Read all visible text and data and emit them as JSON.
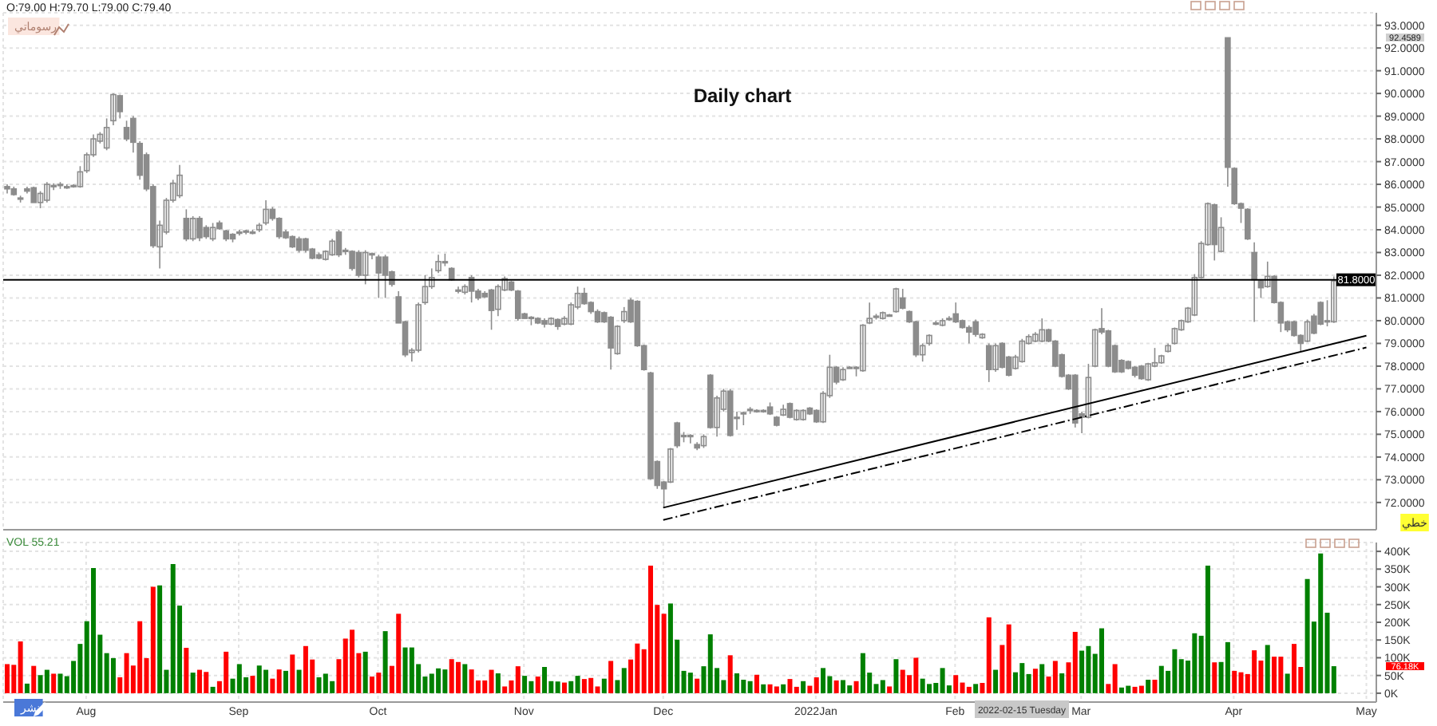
{
  "chart_data": [
    {
      "type": "candlestick",
      "title": "Daily chart",
      "categories": [
        null,
        null,
        null,
        null,
        null,
        null,
        null,
        null,
        null,
        null,
        null,
        null,
        "Aug",
        null,
        null,
        null,
        null,
        null,
        null,
        null,
        null,
        null,
        null,
        null,
        null,
        null,
        null,
        null,
        null,
        null,
        null,
        null,
        null,
        null,
        null,
        "Sep",
        null,
        null,
        null,
        null,
        null,
        null,
        null,
        null,
        null,
        null,
        null,
        null,
        null,
        null,
        null,
        null,
        null,
        null,
        null,
        null,
        "Oct",
        null,
        null,
        null,
        null,
        null,
        null,
        null,
        null,
        null,
        null,
        null,
        null,
        null,
        null,
        null,
        null,
        null,
        null,
        null,
        null,
        null,
        "Nov",
        null,
        null,
        null,
        null,
        null,
        null,
        null,
        null,
        null,
        null,
        null,
        null,
        null,
        null,
        null,
        null,
        null,
        null,
        null,
        null,
        "Dec",
        null,
        null,
        null,
        null,
        null,
        null,
        null,
        null,
        null,
        null,
        null,
        null,
        null,
        null,
        null,
        null,
        null,
        null,
        null,
        null,
        null,
        null,
        "2022Jan",
        null,
        null,
        null,
        null,
        null,
        null,
        null,
        null,
        null,
        null,
        null,
        null,
        null,
        null,
        null,
        null,
        null,
        null,
        null,
        null,
        "Feb",
        null,
        null,
        null,
        null,
        null,
        null,
        null,
        null,
        null,
        null,
        null,
        null,
        null,
        null,
        null,
        null,
        null,
        null,
        "Mar",
        null,
        null,
        null,
        null,
        null,
        null,
        null,
        null,
        null,
        null,
        null,
        null,
        null,
        null,
        null,
        null,
        null,
        null,
        null,
        null,
        null,
        null,
        "Apr",
        null,
        null,
        null,
        null,
        null,
        null,
        null,
        null,
        null,
        null,
        null,
        null,
        null,
        null,
        null,
        null,
        null,
        null,
        null,
        "May",
        null
      ],
      "ohlc": [
        [
          85.9,
          86.0,
          85.6,
          85.8
        ],
        [
          85.8,
          85.9,
          85.5,
          85.55
        ],
        [
          85.4,
          85.5,
          85.2,
          85.4
        ],
        [
          85.8,
          85.9,
          85.6,
          85.7
        ],
        [
          85.85,
          85.9,
          85.2,
          85.2
        ],
        [
          85.2,
          85.7,
          84.95,
          85.6
        ],
        [
          85.3,
          86.1,
          85.2,
          86.0
        ],
        [
          85.9,
          86.05,
          85.75,
          85.95
        ],
        [
          85.95,
          86.1,
          85.8,
          86.0
        ],
        [
          85.9,
          86.0,
          85.8,
          85.9
        ],
        [
          85.9,
          86.0,
          85.85,
          85.95
        ],
        [
          85.9,
          86.8,
          85.85,
          86.55
        ],
        [
          86.6,
          87.4,
          86.5,
          87.3
        ],
        [
          87.3,
          88.2,
          87.2,
          88.0
        ],
        [
          87.9,
          88.3,
          87.8,
          88.2
        ],
        [
          87.6,
          88.9,
          87.5,
          88.5
        ],
        [
          88.8,
          90.0,
          88.6,
          89.95
        ],
        [
          89.9,
          89.95,
          88.9,
          89.2
        ],
        [
          88.5,
          88.8,
          87.9,
          88.0
        ],
        [
          88.9,
          89.0,
          87.4,
          87.85
        ],
        [
          87.8,
          87.9,
          86.2,
          86.4
        ],
        [
          87.3,
          87.4,
          85.7,
          85.8
        ],
        [
          85.9,
          86.0,
          83.2,
          83.3
        ],
        [
          83.25,
          84.4,
          82.3,
          84.2
        ],
        [
          83.9,
          85.4,
          83.8,
          85.3
        ],
        [
          85.3,
          86.2,
          85.2,
          86.05
        ],
        [
          85.5,
          86.85,
          85.4,
          86.4
        ],
        [
          84.5,
          84.9,
          83.5,
          83.6
        ],
        [
          83.6,
          84.6,
          83.5,
          84.5
        ],
        [
          84.5,
          84.6,
          83.5,
          83.65
        ],
        [
          84.1,
          84.2,
          83.6,
          83.7
        ],
        [
          83.6,
          84.3,
          83.5,
          84.1
        ],
        [
          84.3,
          84.4,
          84.0,
          84.05
        ],
        [
          83.95,
          84.0,
          83.5,
          83.6
        ],
        [
          83.8,
          83.85,
          83.45,
          83.6
        ],
        [
          83.85,
          84.0,
          83.75,
          83.9
        ],
        [
          83.9,
          84.0,
          83.8,
          83.95
        ],
        [
          83.9,
          84.0,
          83.8,
          83.9
        ],
        [
          84.0,
          84.3,
          83.9,
          84.2
        ],
        [
          84.3,
          85.3,
          84.2,
          84.9
        ],
        [
          84.9,
          85.0,
          84.4,
          84.5
        ],
        [
          84.5,
          84.55,
          83.6,
          83.7
        ],
        [
          83.9,
          84.0,
          83.6,
          83.65
        ],
        [
          83.7,
          83.75,
          83.2,
          83.25
        ],
        [
          83.6,
          83.7,
          83.0,
          83.1
        ],
        [
          83.6,
          83.65,
          83.0,
          83.1
        ],
        [
          83.15,
          83.2,
          82.7,
          82.75
        ],
        [
          82.9,
          83.0,
          82.7,
          82.75
        ],
        [
          82.7,
          83.1,
          82.65,
          83.05
        ],
        [
          82.9,
          83.6,
          82.85,
          83.5
        ],
        [
          83.9,
          84.0,
          82.8,
          82.9
        ],
        [
          83.1,
          83.2,
          82.9,
          83.05
        ],
        [
          83.05,
          83.1,
          82.2,
          82.3
        ],
        [
          83.0,
          83.1,
          81.9,
          82.0
        ],
        [
          82.0,
          83.1,
          81.6,
          83.0
        ],
        [
          82.95,
          83.0,
          82.7,
          82.9
        ],
        [
          82.8,
          82.9,
          81.0,
          82.1
        ],
        [
          82.8,
          82.9,
          81.0,
          82.0
        ],
        [
          82.15,
          82.2,
          81.5,
          81.6
        ],
        [
          81.05,
          81.3,
          79.9,
          79.9
        ],
        [
          79.95,
          80.0,
          78.4,
          78.5
        ],
        [
          78.6,
          78.8,
          78.2,
          78.7
        ],
        [
          78.7,
          80.8,
          78.6,
          80.7
        ],
        [
          80.8,
          82.0,
          80.7,
          81.5
        ],
        [
          81.5,
          82.3,
          81.4,
          81.9
        ],
        [
          82.2,
          82.9,
          82.1,
          82.6
        ],
        [
          82.55,
          82.95,
          82.4,
          82.6
        ],
        [
          82.3,
          82.35,
          81.75,
          81.8
        ],
        [
          81.3,
          81.5,
          81.2,
          81.35
        ],
        [
          81.25,
          81.6,
          81.15,
          81.5
        ],
        [
          81.9,
          82.0,
          80.8,
          81.3
        ],
        [
          81.3,
          81.4,
          80.9,
          81.0
        ],
        [
          81.2,
          81.3,
          81.0,
          81.05
        ],
        [
          81.35,
          81.4,
          79.6,
          80.45
        ],
        [
          80.5,
          81.6,
          80.2,
          81.5
        ],
        [
          81.35,
          81.95,
          81.3,
          81.85
        ],
        [
          81.7,
          81.75,
          81.3,
          81.35
        ],
        [
          81.3,
          81.35,
          80.0,
          80.1
        ],
        [
          80.3,
          80.35,
          80.1,
          80.1
        ],
        [
          80.15,
          80.2,
          79.8,
          80.1
        ],
        [
          80.1,
          80.15,
          79.85,
          79.9
        ],
        [
          80.0,
          80.1,
          79.7,
          79.85
        ],
        [
          79.85,
          80.15,
          79.8,
          80.1
        ],
        [
          80.05,
          80.1,
          79.6,
          79.75
        ],
        [
          79.85,
          80.2,
          79.8,
          80.1
        ],
        [
          79.85,
          80.8,
          79.8,
          80.7
        ],
        [
          80.6,
          81.5,
          80.5,
          81.2
        ],
        [
          81.2,
          81.45,
          80.7,
          80.75
        ],
        [
          80.8,
          80.85,
          80.3,
          80.4
        ],
        [
          80.4,
          80.5,
          79.9,
          79.95
        ],
        [
          80.35,
          80.4,
          79.9,
          79.95
        ],
        [
          80.15,
          80.2,
          77.85,
          78.8
        ],
        [
          78.55,
          79.8,
          78.5,
          79.75
        ],
        [
          80.0,
          80.6,
          79.9,
          80.4
        ],
        [
          80.9,
          81.0,
          79.9,
          79.95
        ],
        [
          80.85,
          80.9,
          78.85,
          78.9
        ],
        [
          78.9,
          78.95,
          77.8,
          77.85
        ],
        [
          77.7,
          77.75,
          73.0,
          73.05
        ],
        [
          73.8,
          73.85,
          72.6,
          72.75
        ],
        [
          72.9,
          72.95,
          71.75,
          72.6
        ],
        [
          72.9,
          74.4,
          72.85,
          74.35
        ],
        [
          75.5,
          75.55,
          74.4,
          74.5
        ],
        [
          74.9,
          75.1,
          74.65,
          74.95
        ],
        [
          74.9,
          75.0,
          74.6,
          74.95
        ],
        [
          74.55,
          74.65,
          74.3,
          74.4
        ],
        [
          74.5,
          75.0,
          74.4,
          74.9
        ],
        [
          77.6,
          77.65,
          75.25,
          75.3
        ],
        [
          75.3,
          76.7,
          74.9,
          76.6
        ],
        [
          76.1,
          77.0,
          76.0,
          76.9
        ],
        [
          76.9,
          77.0,
          74.9,
          74.95
        ],
        [
          75.75,
          76.0,
          75.2,
          75.75
        ],
        [
          75.9,
          76.0,
          75.4,
          75.95
        ],
        [
          76.05,
          76.2,
          75.9,
          76.1
        ],
        [
          76.0,
          76.1,
          75.95,
          76.05
        ],
        [
          76.0,
          76.1,
          75.95,
          76.05
        ],
        [
          76.2,
          76.4,
          75.85,
          75.9
        ],
        [
          75.75,
          75.8,
          75.35,
          75.4
        ],
        [
          75.85,
          76.3,
          75.8,
          76.1
        ],
        [
          76.35,
          76.4,
          75.7,
          75.75
        ],
        [
          75.65,
          76.1,
          75.6,
          76.05
        ],
        [
          75.65,
          76.1,
          75.6,
          76.05
        ],
        [
          76.15,
          76.2,
          75.85,
          75.9
        ],
        [
          76.05,
          76.1,
          75.5,
          75.55
        ],
        [
          75.55,
          76.9,
          75.5,
          76.8
        ],
        [
          76.7,
          78.5,
          76.6,
          77.95
        ],
        [
          77.95,
          78.0,
          77.2,
          77.3
        ],
        [
          77.4,
          77.95,
          77.35,
          77.85
        ],
        [
          77.95,
          78.0,
          77.9,
          77.95
        ],
        [
          77.95,
          78.0,
          77.55,
          77.9
        ],
        [
          77.8,
          79.85,
          77.75,
          79.8
        ],
        [
          79.9,
          80.8,
          79.85,
          80.1
        ],
        [
          80.15,
          80.3,
          80.05,
          80.2
        ],
        [
          80.1,
          80.4,
          80.05,
          80.35
        ],
        [
          80.25,
          80.3,
          80.2,
          80.25
        ],
        [
          80.4,
          81.45,
          80.35,
          81.4
        ],
        [
          81.0,
          81.4,
          80.5,
          80.55
        ],
        [
          80.4,
          80.45,
          79.9,
          79.95
        ],
        [
          79.95,
          80.0,
          78.4,
          78.5
        ],
        [
          78.5,
          79.0,
          78.2,
          78.9
        ],
        [
          79.0,
          79.4,
          78.9,
          79.35
        ],
        [
          79.9,
          80.0,
          79.8,
          79.9
        ],
        [
          79.8,
          80.1,
          79.75,
          80.0
        ],
        [
          80.05,
          80.2,
          80.0,
          80.1
        ],
        [
          80.3,
          80.8,
          79.9,
          79.95
        ],
        [
          80.0,
          80.05,
          79.65,
          79.7
        ],
        [
          79.7,
          79.8,
          79.0,
          79.5
        ],
        [
          79.95,
          80.05,
          79.3,
          79.4
        ],
        [
          79.25,
          79.45,
          79.2,
          79.4
        ],
        [
          78.9,
          79.0,
          77.3,
          77.85
        ],
        [
          77.85,
          79.0,
          77.75,
          78.9
        ],
        [
          79.0,
          79.05,
          77.9,
          77.95
        ],
        [
          78.4,
          78.45,
          77.55,
          77.6
        ],
        [
          77.9,
          78.5,
          77.85,
          78.4
        ],
        [
          78.2,
          79.2,
          78.15,
          79.1
        ],
        [
          79.0,
          79.4,
          78.95,
          79.3
        ],
        [
          79.1,
          79.5,
          79.05,
          79.4
        ],
        [
          79.1,
          80.1,
          79.05,
          79.6
        ],
        [
          79.6,
          79.65,
          79.05,
          79.1
        ],
        [
          79.1,
          79.15,
          77.95,
          78.0
        ],
        [
          78.5,
          78.55,
          77.5,
          77.55
        ],
        [
          77.6,
          77.65,
          76.95,
          77.0
        ],
        [
          77.6,
          77.65,
          75.3,
          75.5
        ],
        [
          75.9,
          76.0,
          75.05,
          75.75
        ],
        [
          75.75,
          78.1,
          75.7,
          77.5
        ],
        [
          78.0,
          79.65,
          77.95,
          79.6
        ],
        [
          79.65,
          80.55,
          79.4,
          79.5
        ],
        [
          79.55,
          79.6,
          77.95,
          78.0
        ],
        [
          78.9,
          78.95,
          77.7,
          77.75
        ],
        [
          78.25,
          78.3,
          77.7,
          77.75
        ],
        [
          78.2,
          78.25,
          77.85,
          77.9
        ],
        [
          77.95,
          78.0,
          77.5,
          77.6
        ],
        [
          78.0,
          78.05,
          77.4,
          77.45
        ],
        [
          77.4,
          78.15,
          77.35,
          78.1
        ],
        [
          78.0,
          78.8,
          77.95,
          78.15
        ],
        [
          78.15,
          78.5,
          78.1,
          78.45
        ],
        [
          78.65,
          79.0,
          78.6,
          78.9
        ],
        [
          79.0,
          79.7,
          78.95,
          79.65
        ],
        [
          79.6,
          80.05,
          79.55,
          80.0
        ],
        [
          79.95,
          80.6,
          79.9,
          80.55
        ],
        [
          80.25,
          82.05,
          80.2,
          81.9
        ],
        [
          81.9,
          83.5,
          81.85,
          83.4
        ],
        [
          83.35,
          85.2,
          83.3,
          85.15
        ],
        [
          85.1,
          85.15,
          82.65,
          83.35
        ],
        [
          83.05,
          84.55,
          83.0,
          84.1
        ],
        [
          92.45,
          92.46,
          85.9,
          86.75
        ],
        [
          86.7,
          86.75,
          85.1,
          85.15
        ],
        [
          85.15,
          85.2,
          84.3,
          84.95
        ],
        [
          84.9,
          84.95,
          83.55,
          83.6
        ],
        [
          83.0,
          83.45,
          79.95,
          81.8
        ],
        [
          81.75,
          81.8,
          81.0,
          81.45
        ],
        [
          81.5,
          82.6,
          81.45,
          81.95
        ],
        [
          81.95,
          82.0,
          80.75,
          80.8
        ],
        [
          80.8,
          80.85,
          79.5,
          79.9
        ],
        [
          79.95,
          80.0,
          79.5,
          79.6
        ],
        [
          79.95,
          80.0,
          79.3,
          79.35
        ],
        [
          79.35,
          79.4,
          78.65,
          79.0
        ],
        [
          79.1,
          80.05,
          79.05,
          79.95
        ],
        [
          80.2,
          80.3,
          79.4,
          79.45
        ],
        [
          80.8,
          80.85,
          79.8,
          79.85
        ],
        [
          80.0,
          80.9,
          79.75,
          79.95
        ],
        [
          79.95,
          81.95,
          79.9,
          81.75
        ],
        null,
        null,
        null,
        null,
        null,
        null
      ],
      "color": "#8c8c8c",
      "series": [
        {
          "type": "line",
          "x": [
            "Dec",
            "May"
          ],
          "values": [
            71.77,
            79.34
          ],
          "color": "#000000",
          "line_style": "solid"
        },
        {
          "type": "line",
          "x": [
            "Dec",
            "May"
          ],
          "values": [
            71.23,
            78.82
          ],
          "color": "#000000",
          "line_style": "dashed"
        }
      ],
      "ylim": [
        70.8,
        93.55
      ],
      "yticks": [
        {
          "value": 72,
          "label": "72.0000"
        },
        {
          "value": 73,
          "label": "73.0000"
        },
        {
          "value": 74,
          "label": "74.0000"
        },
        {
          "value": 75,
          "label": "75.0000"
        },
        {
          "value": 76,
          "label": "76.0000"
        },
        {
          "value": 77,
          "label": "77.0000"
        },
        {
          "value": 78,
          "label": "78.0000"
        },
        {
          "value": 79,
          "label": "79.0000"
        },
        {
          "value": 80,
          "label": "80.0000"
        },
        {
          "value": 81,
          "label": "81.0000"
        },
        {
          "value": 82,
          "label": "82.0000"
        },
        {
          "value": 83,
          "label": "83.0000"
        },
        {
          "value": 84,
          "label": "84.0000"
        },
        {
          "value": 85,
          "label": "85.0000"
        },
        {
          "value": 86,
          "label": "86.0000"
        },
        {
          "value": 87,
          "label": "87.0000"
        },
        {
          "value": 88,
          "label": "88.0000"
        },
        {
          "value": 89,
          "label": "89.0000"
        },
        {
          "value": 90,
          "label": "90.0000"
        },
        {
          "value": 91,
          "label": "91.0000"
        },
        {
          "value": 92,
          "label": "92.0000"
        },
        {
          "value": 93,
          "label": "93.0000"
        }
      ],
      "grid": true,
      "tick_labels": "y",
      "ref_lines": [
        {
          "axis": "y",
          "value": 81.8,
          "label": "81.8000",
          "color": "#000000"
        }
      ],
      "annotations": [
        "O:79.00  H:79.70  L:79.00  C:79.40",
        "رسوماتي",
        "خطي",
        "92.4589"
      ]
    },
    {
      "type": "bar",
      "categories": [
        null,
        null,
        null,
        null,
        null,
        null,
        null,
        null,
        null,
        null,
        null,
        null,
        "Aug",
        null,
        null,
        null,
        null,
        null,
        null,
        null,
        null,
        null,
        null,
        null,
        null,
        null,
        null,
        null,
        null,
        null,
        null,
        null,
        null,
        null,
        null,
        "Sep",
        null,
        null,
        null,
        null,
        null,
        null,
        null,
        null,
        null,
        null,
        null,
        null,
        null,
        null,
        null,
        null,
        null,
        null,
        null,
        null,
        "Oct",
        null,
        null,
        null,
        null,
        null,
        null,
        null,
        null,
        null,
        null,
        null,
        null,
        null,
        null,
        null,
        null,
        null,
        null,
        null,
        null,
        null,
        "Nov",
        null,
        null,
        null,
        null,
        null,
        null,
        null,
        null,
        null,
        null,
        null,
        null,
        null,
        null,
        null,
        null,
        null,
        null,
        null,
        null,
        "Dec",
        null,
        null,
        null,
        null,
        null,
        null,
        null,
        null,
        null,
        null,
        null,
        null,
        null,
        null,
        null,
        null,
        null,
        null,
        null,
        null,
        null,
        null,
        "2022Jan",
        null,
        null,
        null,
        null,
        null,
        null,
        null,
        null,
        null,
        null,
        null,
        null,
        null,
        null,
        null,
        null,
        null,
        null,
        null,
        null,
        "Feb",
        null,
        null,
        null,
        null,
        null,
        null,
        null,
        null,
        null,
        null,
        null,
        null,
        null,
        null,
        null,
        null,
        null,
        null,
        "Mar",
        null,
        null,
        null,
        null,
        null,
        null,
        null,
        null,
        null,
        null,
        null,
        null,
        null,
        null,
        null,
        null,
        null,
        null,
        null,
        null,
        null,
        null,
        "Apr",
        null,
        null,
        null,
        null,
        null,
        null,
        null,
        null,
        null,
        null,
        null,
        null,
        null,
        null,
        null,
        null,
        null,
        null,
        null,
        "May",
        null
      ],
      "values": [
        82,
        80,
        146,
        27,
        77,
        51,
        66,
        55,
        55,
        48,
        91,
        139,
        203,
        353,
        165,
        113,
        99,
        45,
        113,
        78,
        203,
        99,
        300,
        304,
        66,
        364,
        247,
        128,
        58,
        66,
        60,
        18,
        34,
        117,
        41,
        82,
        45,
        49,
        78,
        66,
        41,
        67,
        63,
        109,
        66,
        133,
        95,
        45,
        55,
        34,
        96,
        154,
        179,
        113,
        117,
        47,
        58,
        175,
        77,
        224,
        129,
        129,
        82,
        47,
        55,
        70,
        67,
        96,
        88,
        82,
        67,
        36,
        36,
        66,
        56,
        19,
        36,
        76,
        49,
        34,
        47,
        74,
        34,
        33,
        30,
        34,
        49,
        40,
        43,
        19,
        41,
        91,
        37,
        71,
        95,
        140,
        124,
        360,
        249,
        224,
        253,
        151,
        63,
        58,
        41,
        76,
        166,
        71,
        37,
        107,
        56,
        38,
        34,
        52,
        25,
        25,
        19,
        25,
        40,
        18,
        34,
        21,
        45,
        71,
        48,
        36,
        37,
        22,
        34,
        113,
        58,
        26,
        37,
        19,
        96,
        66,
        51,
        100,
        41,
        26,
        29,
        71,
        22,
        51,
        30,
        18,
        26,
        29,
        214,
        66,
        136,
        194,
        59,
        85,
        54,
        69,
        82,
        47,
        91,
        56,
        87,
        173,
        120,
        133,
        111,
        183,
        26,
        82,
        16,
        21,
        18,
        21,
        38,
        38,
        77,
        63,
        124,
        96,
        92,
        169,
        162,
        360,
        87,
        88,
        144,
        63,
        59,
        54,
        121,
        92,
        136,
        103,
        103,
        55,
        139,
        74,
        322,
        202,
        394,
        227,
        76.18,
        null,
        null,
        null,
        null,
        null,
        null
      ],
      "colors": [
        "#ff0000",
        "#ff0000",
        "#ff0000",
        "#008000",
        "#ff0000",
        "#008000",
        "#008000",
        "#ff0000",
        "#008000",
        "#008000",
        "#008000",
        "#008000",
        "#008000",
        "#008000",
        "#008000",
        "#008000",
        "#008000",
        "#ff0000",
        "#ff0000",
        "#ff0000",
        "#ff0000",
        "#ff0000",
        "#ff0000",
        "#008000",
        "#008000",
        "#008000",
        "#008000",
        "#ff0000",
        "#008000",
        "#ff0000",
        "#ff0000",
        "#008000",
        "#ff0000",
        "#ff0000",
        "#008000",
        "#008000",
        "#008000",
        "#ff0000",
        "#008000",
        "#008000",
        "#ff0000",
        "#ff0000",
        "#008000",
        "#ff0000",
        "#008000",
        "#ff0000",
        "#ff0000",
        "#008000",
        "#008000",
        "#008000",
        "#ff0000",
        "#ff0000",
        "#ff0000",
        "#ff0000",
        "#008000",
        "#ff0000",
        "#ff0000",
        "#008000",
        "#ff0000",
        "#ff0000",
        "#008000",
        "#008000",
        "#008000",
        "#008000",
        "#008000",
        "#008000",
        "#008000",
        "#ff0000",
        "#ff0000",
        "#008000",
        "#ff0000",
        "#ff0000",
        "#ff0000",
        "#ff0000",
        "#008000",
        "#ff0000",
        "#ff0000",
        "#ff0000",
        "#008000",
        "#008000",
        "#ff0000",
        "#008000",
        "#008000",
        "#008000",
        "#ff0000",
        "#008000",
        "#008000",
        "#ff0000",
        "#ff0000",
        "#ff0000",
        "#008000",
        "#ff0000",
        "#008000",
        "#008000",
        "#ff0000",
        "#ff0000",
        "#ff0000",
        "#ff0000",
        "#ff0000",
        "#ff0000",
        "#008000",
        "#008000",
        "#008000",
        "#008000",
        "#ff0000",
        "#008000",
        "#008000",
        "#008000",
        "#008000",
        "#ff0000",
        "#008000",
        "#008000",
        "#008000",
        "#ff0000",
        "#008000",
        "#ff0000",
        "#ff0000",
        "#008000",
        "#ff0000",
        "#ff0000",
        "#008000",
        "#ff0000",
        "#ff0000",
        "#008000",
        "#008000",
        "#ff0000",
        "#008000",
        "#008000",
        "#ff0000",
        "#008000",
        "#008000",
        "#008000",
        "#008000",
        "#ff0000",
        "#008000",
        "#ff0000",
        "#ff0000",
        "#ff0000",
        "#008000",
        "#008000",
        "#008000",
        "#008000",
        "#008000",
        "#ff0000",
        "#ff0000",
        "#ff0000",
        "#008000",
        "#ff0000",
        "#ff0000",
        "#008000",
        "#ff0000",
        "#ff0000",
        "#008000",
        "#008000",
        "#008000",
        "#ff0000",
        "#008000",
        "#ff0000",
        "#ff0000",
        "#008000",
        "#ff0000",
        "#ff0000",
        "#008000",
        "#008000",
        "#008000",
        "#008000",
        "#ff0000",
        "#ff0000",
        "#008000",
        "#008000",
        "#ff0000",
        "#ff0000",
        "#008000",
        "#ff0000",
        "#008000",
        "#008000",
        "#008000",
        "#008000",
        "#008000",
        "#008000",
        "#008000",
        "#008000",
        "#ff0000",
        "#008000",
        "#008000",
        "#ff0000",
        "#ff0000",
        "#ff0000",
        "#ff0000",
        "#ff0000",
        "#008000",
        "#ff0000",
        "#ff0000",
        "#008000",
        "#ff0000",
        "#ff0000",
        "#008000",
        "#008000",
        "#008000",
        "#008000",
        "#008000",
        null,
        null,
        null,
        null,
        null,
        null
      ],
      "ylim": [
        -25,
        425
      ],
      "yticks": [
        {
          "value": 0,
          "label": "0K"
        },
        {
          "value": 50,
          "label": "50K"
        },
        {
          "value": 100,
          "label": "100K"
        },
        {
          "value": 150,
          "label": "150K"
        },
        {
          "value": 200,
          "label": "200K"
        },
        {
          "value": 250,
          "label": "250K"
        },
        {
          "value": 300,
          "label": "300K"
        },
        {
          "value": 350,
          "label": "350K"
        },
        {
          "value": 400,
          "label": "400K"
        }
      ],
      "grid": true,
      "annotations": [
        "VOL  55.21",
        "2022-02-15 Tuesday",
        "نشر",
        "76.18K"
      ]
    }
  ]
}
